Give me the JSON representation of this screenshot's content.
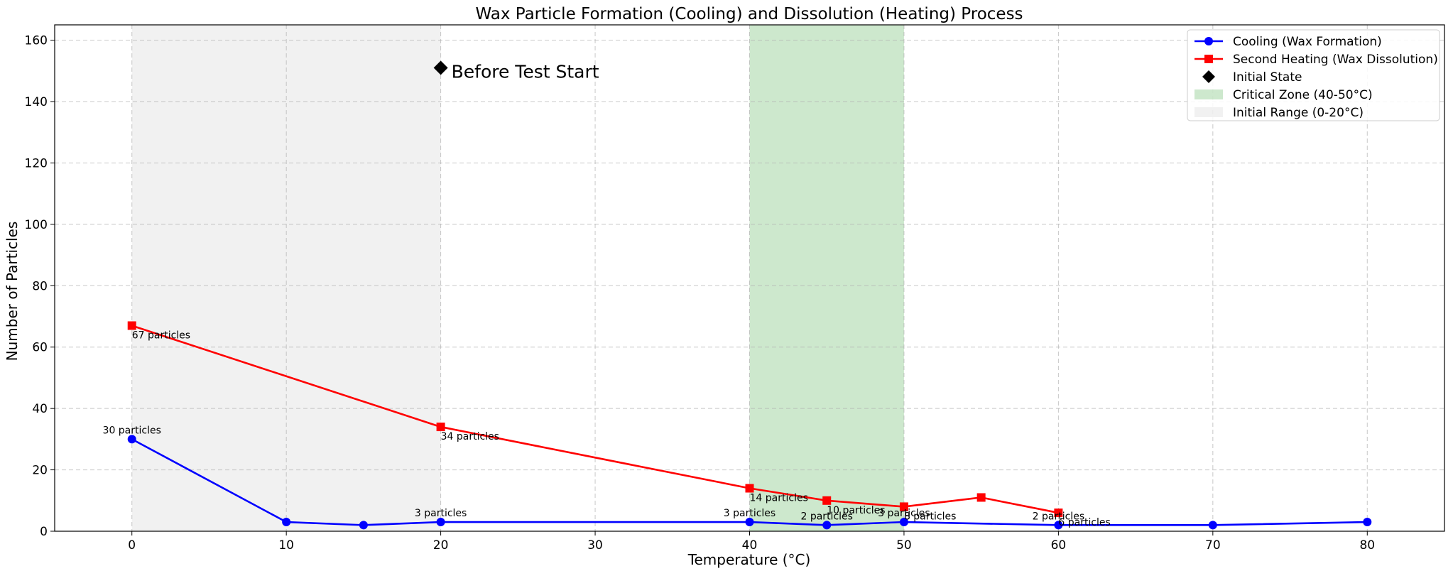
{
  "chart_data": {
    "type": "line",
    "title": "Wax Particle Formation (Cooling) and Dissolution (Heating) Process",
    "xlabel": "Temperature (°C)",
    "ylabel": "Number of Particles",
    "xlim": [
      -5,
      85
    ],
    "ylim": [
      0,
      165
    ],
    "xticks": [
      0,
      10,
      20,
      30,
      40,
      50,
      60,
      70,
      80
    ],
    "yticks": [
      0,
      20,
      40,
      60,
      80,
      100,
      120,
      140,
      160
    ],
    "grid": true,
    "legend_position": "top-right",
    "series": [
      {
        "name": "Cooling (Wax Formation)",
        "color": "#0000ff",
        "marker": "circle",
        "x": [
          0,
          10,
          15,
          20,
          40,
          45,
          50,
          60,
          70,
          80
        ],
        "y": [
          30,
          3,
          2,
          3,
          3,
          2,
          3,
          2,
          2,
          3
        ]
      },
      {
        "name": "Second Heating (Wax Dissolution)",
        "color": "#ff0000",
        "marker": "square",
        "x": [
          0,
          20,
          40,
          45,
          50,
          55,
          60
        ],
        "y": [
          67,
          34,
          14,
          10,
          8,
          11,
          6
        ]
      },
      {
        "name": "Initial State",
        "color": "#000000",
        "marker": "diamond",
        "x": [
          20
        ],
        "y": [
          151
        ]
      }
    ],
    "bands": [
      {
        "name": "Critical Zone (40-50°C)",
        "x0": 40,
        "x1": 50,
        "color": "#2ca02c",
        "opacity": 0.24
      },
      {
        "name": "Initial Range (0-20°C)",
        "x0": 0,
        "x1": 20,
        "color": "#bdbdbd",
        "opacity": 0.22
      }
    ],
    "annotations": [
      {
        "text": "30 particles",
        "x": 0,
        "y": 30,
        "series": "Cooling (Wax Formation)",
        "place": "above"
      },
      {
        "text": "3 particles",
        "x": 20,
        "y": 3,
        "series": "Cooling (Wax Formation)",
        "place": "above"
      },
      {
        "text": "3 particles",
        "x": 40,
        "y": 3,
        "series": "Cooling (Wax Formation)",
        "place": "above"
      },
      {
        "text": "2 particles",
        "x": 45,
        "y": 2,
        "series": "Cooling (Wax Formation)",
        "place": "above"
      },
      {
        "text": "3 particles",
        "x": 50,
        "y": 3,
        "series": "Cooling (Wax Formation)",
        "place": "above"
      },
      {
        "text": "2 particles",
        "x": 60,
        "y": 2,
        "series": "Cooling (Wax Formation)",
        "place": "above"
      },
      {
        "text": "67 particles",
        "x": 0,
        "y": 67,
        "series": "Second Heating (Wax Dissolution)",
        "place": "below"
      },
      {
        "text": "34 particles",
        "x": 20,
        "y": 34,
        "series": "Second Heating (Wax Dissolution)",
        "place": "below"
      },
      {
        "text": "14 particles",
        "x": 40,
        "y": 14,
        "series": "Second Heating (Wax Dissolution)",
        "place": "below"
      },
      {
        "text": "10 particles",
        "x": 45,
        "y": 10,
        "series": "Second Heating (Wax Dissolution)",
        "place": "below"
      },
      {
        "text": "8 particles",
        "x": 50,
        "y": 8,
        "series": "Second Heating (Wax Dissolution)",
        "place": "below"
      },
      {
        "text": "6 particles",
        "x": 60,
        "y": 6,
        "series": "Second Heating (Wax Dissolution)",
        "place": "below"
      },
      {
        "text": "Before Test Start",
        "x": 20,
        "y": 151,
        "series": "Initial State",
        "place": "right-large"
      }
    ]
  }
}
